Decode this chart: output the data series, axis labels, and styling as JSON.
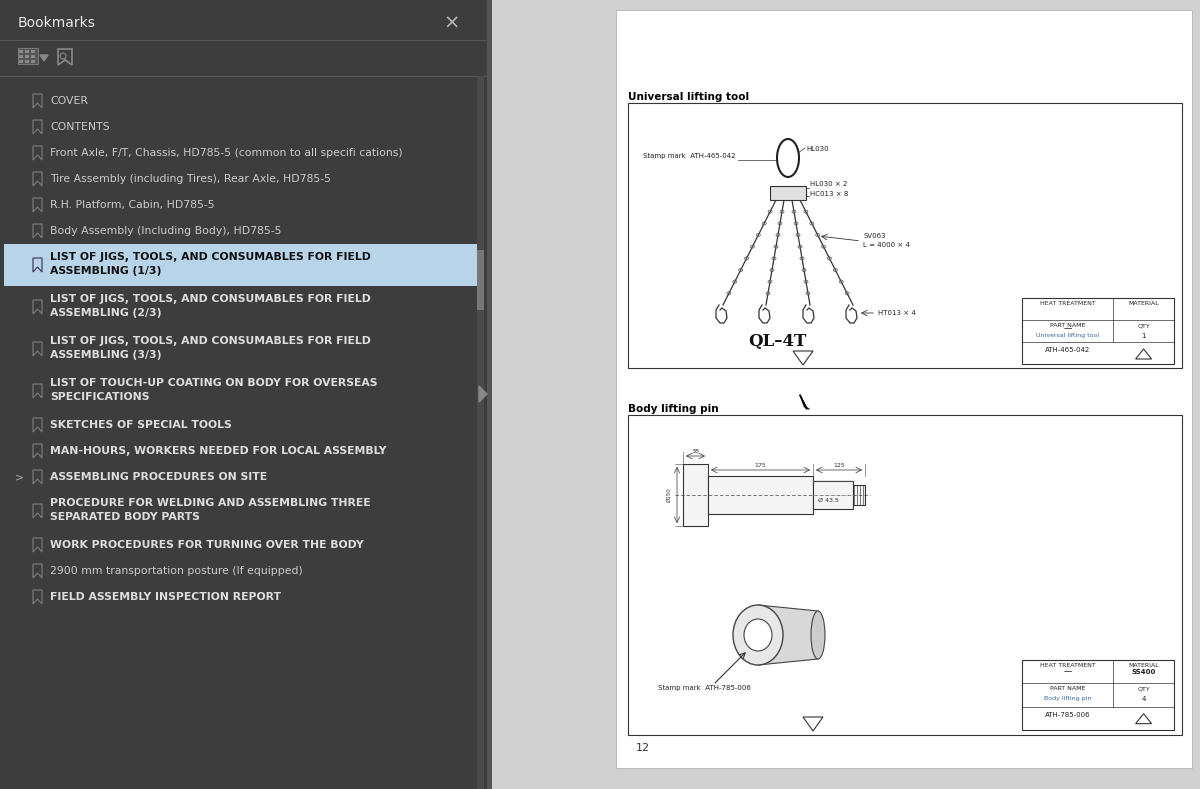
{
  "fig_width": 12.0,
  "fig_height": 7.89,
  "dpi": 100,
  "panel_bg": "#3d3d3d",
  "selected_item_color": "#b8d4e8",
  "selected_text_color": "#111111",
  "normal_text_color": "#cccccc",
  "bold_text_color": "#dddddd",
  "bookmarks_title": "Bookmarks",
  "menu_items": [
    {
      "text": "COVER",
      "bold": false,
      "selected": false,
      "multiline": false
    },
    {
      "text": "CONTENTS",
      "bold": false,
      "selected": false,
      "multiline": false
    },
    {
      "text": "Front Axle, F/T, Chassis, HD785-5 (common to all specifi cations)",
      "bold": false,
      "selected": false,
      "multiline": false
    },
    {
      "text": "Tire Assembly (including Tires), Rear Axle, HD785-5",
      "bold": false,
      "selected": false,
      "multiline": false
    },
    {
      "text": "R.H. Platform, Cabin, HD785-5",
      "bold": false,
      "selected": false,
      "multiline": false
    },
    {
      "text": "Body Assembly (Including Body), HD785-5",
      "bold": false,
      "selected": false,
      "multiline": false
    },
    {
      "text": "LIST OF JIGS, TOOLS, AND CONSUMABLES FOR FIELD",
      "text2": "ASSEMBLING (1/3)",
      "bold": true,
      "selected": true,
      "multiline": true
    },
    {
      "text": "LIST OF JIGS, TOOLS, AND CONSUMABLES FOR FIELD",
      "text2": "ASSEMBLING (2/3)",
      "bold": true,
      "selected": false,
      "multiline": true
    },
    {
      "text": "LIST OF JIGS, TOOLS, AND CONSUMABLES FOR FIELD",
      "text2": "ASSEMBLING (3/3)",
      "bold": true,
      "selected": false,
      "multiline": true
    },
    {
      "text": "LIST OF TOUCH-UP COATING ON BODY FOR OVERSEAS",
      "text2": "SPECIFICATIONS",
      "bold": true,
      "selected": false,
      "multiline": true
    },
    {
      "text": "SKETCHES OF SPECIAL TOOLS",
      "bold": true,
      "selected": false,
      "multiline": false
    },
    {
      "text": "MAN-HOURS, WORKERS NEEDED FOR LOCAL ASSEMBLY",
      "bold": true,
      "selected": false,
      "multiline": false
    },
    {
      "text": "ASSEMBLING PROCEDURES ON SITE",
      "bold": true,
      "selected": false,
      "multiline": false,
      "arrow": true
    },
    {
      "text": "PROCEDURE FOR WELDING AND ASSEMBLING THREE",
      "text2": "SEPARATED BODY PARTS",
      "bold": true,
      "selected": false,
      "multiline": true
    },
    {
      "text": "WORK PROCEDURES FOR TURNING OVER THE BODY",
      "bold": true,
      "selected": false,
      "multiline": false
    },
    {
      "text": "2900 mm transportation posture (If equipped)",
      "bold": false,
      "selected": false,
      "multiline": false
    },
    {
      "text": "FIELD ASSEMBLY INSPECTION REPORT",
      "bold": true,
      "selected": false,
      "multiline": false
    }
  ],
  "drawing1_title": "Universal lifting tool",
  "drawing2_title": "Body lifting pin",
  "page_number": "12"
}
